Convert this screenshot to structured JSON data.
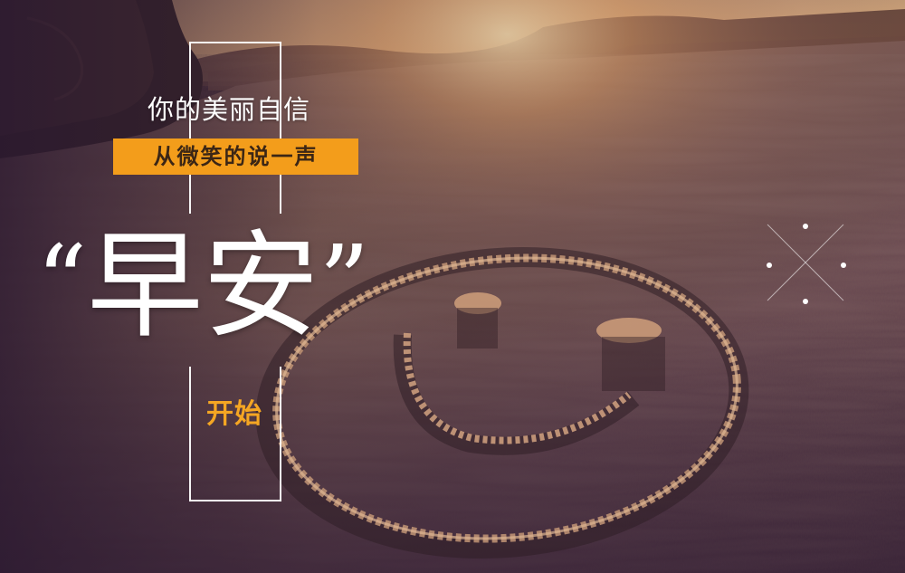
{
  "poster": {
    "line1": "你的美丽自信",
    "banner": "从微笑的说一声",
    "title_open_quote": "“",
    "title": "早安",
    "title_close_quote": "”",
    "start": "开始"
  },
  "colors": {
    "accent_orange": "#f39d1b",
    "start_orange": "#f5a623",
    "text_white": "#ffffff",
    "sky_glow": "#f6c98a",
    "sand_dark": "#3a2530"
  },
  "scene": {
    "background": "sunset-beach-photo",
    "drawing": "smiley-face-in-sand",
    "decoration": "sparkle-cross-icon"
  }
}
